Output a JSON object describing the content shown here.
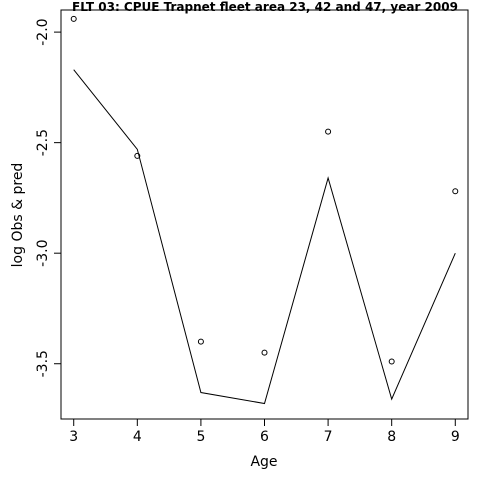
{
  "chart_data": {
    "type": "line",
    "title": "FLT 03: CPUE Trapnet fleet area 23, 42 and 47, year 2009",
    "xlabel": "Age",
    "ylabel": "log Obs & pred",
    "xlim": [
      2.8,
      9.2
    ],
    "ylim": [
      -3.75,
      -1.9
    ],
    "x_ticks": [
      3,
      4,
      5,
      6,
      7,
      8,
      9
    ],
    "y_ticks": [
      -3.5,
      -3.0,
      -2.5,
      -2.0
    ],
    "y_tick_labels": [
      "-3.5",
      "-3.0",
      "-2.5",
      "-2.0"
    ],
    "grid": false,
    "x": [
      3,
      4,
      5,
      6,
      7,
      8,
      9
    ],
    "series": [
      {
        "type": "scatter",
        "marker": "open-circle",
        "values": [
          -1.94,
          -2.56,
          -3.4,
          -3.45,
          -2.45,
          -3.49,
          -2.72
        ]
      },
      {
        "type": "line",
        "values": [
          -2.17,
          -2.53,
          -3.63,
          -3.68,
          -2.66,
          -3.66,
          -3.0
        ]
      }
    ]
  }
}
